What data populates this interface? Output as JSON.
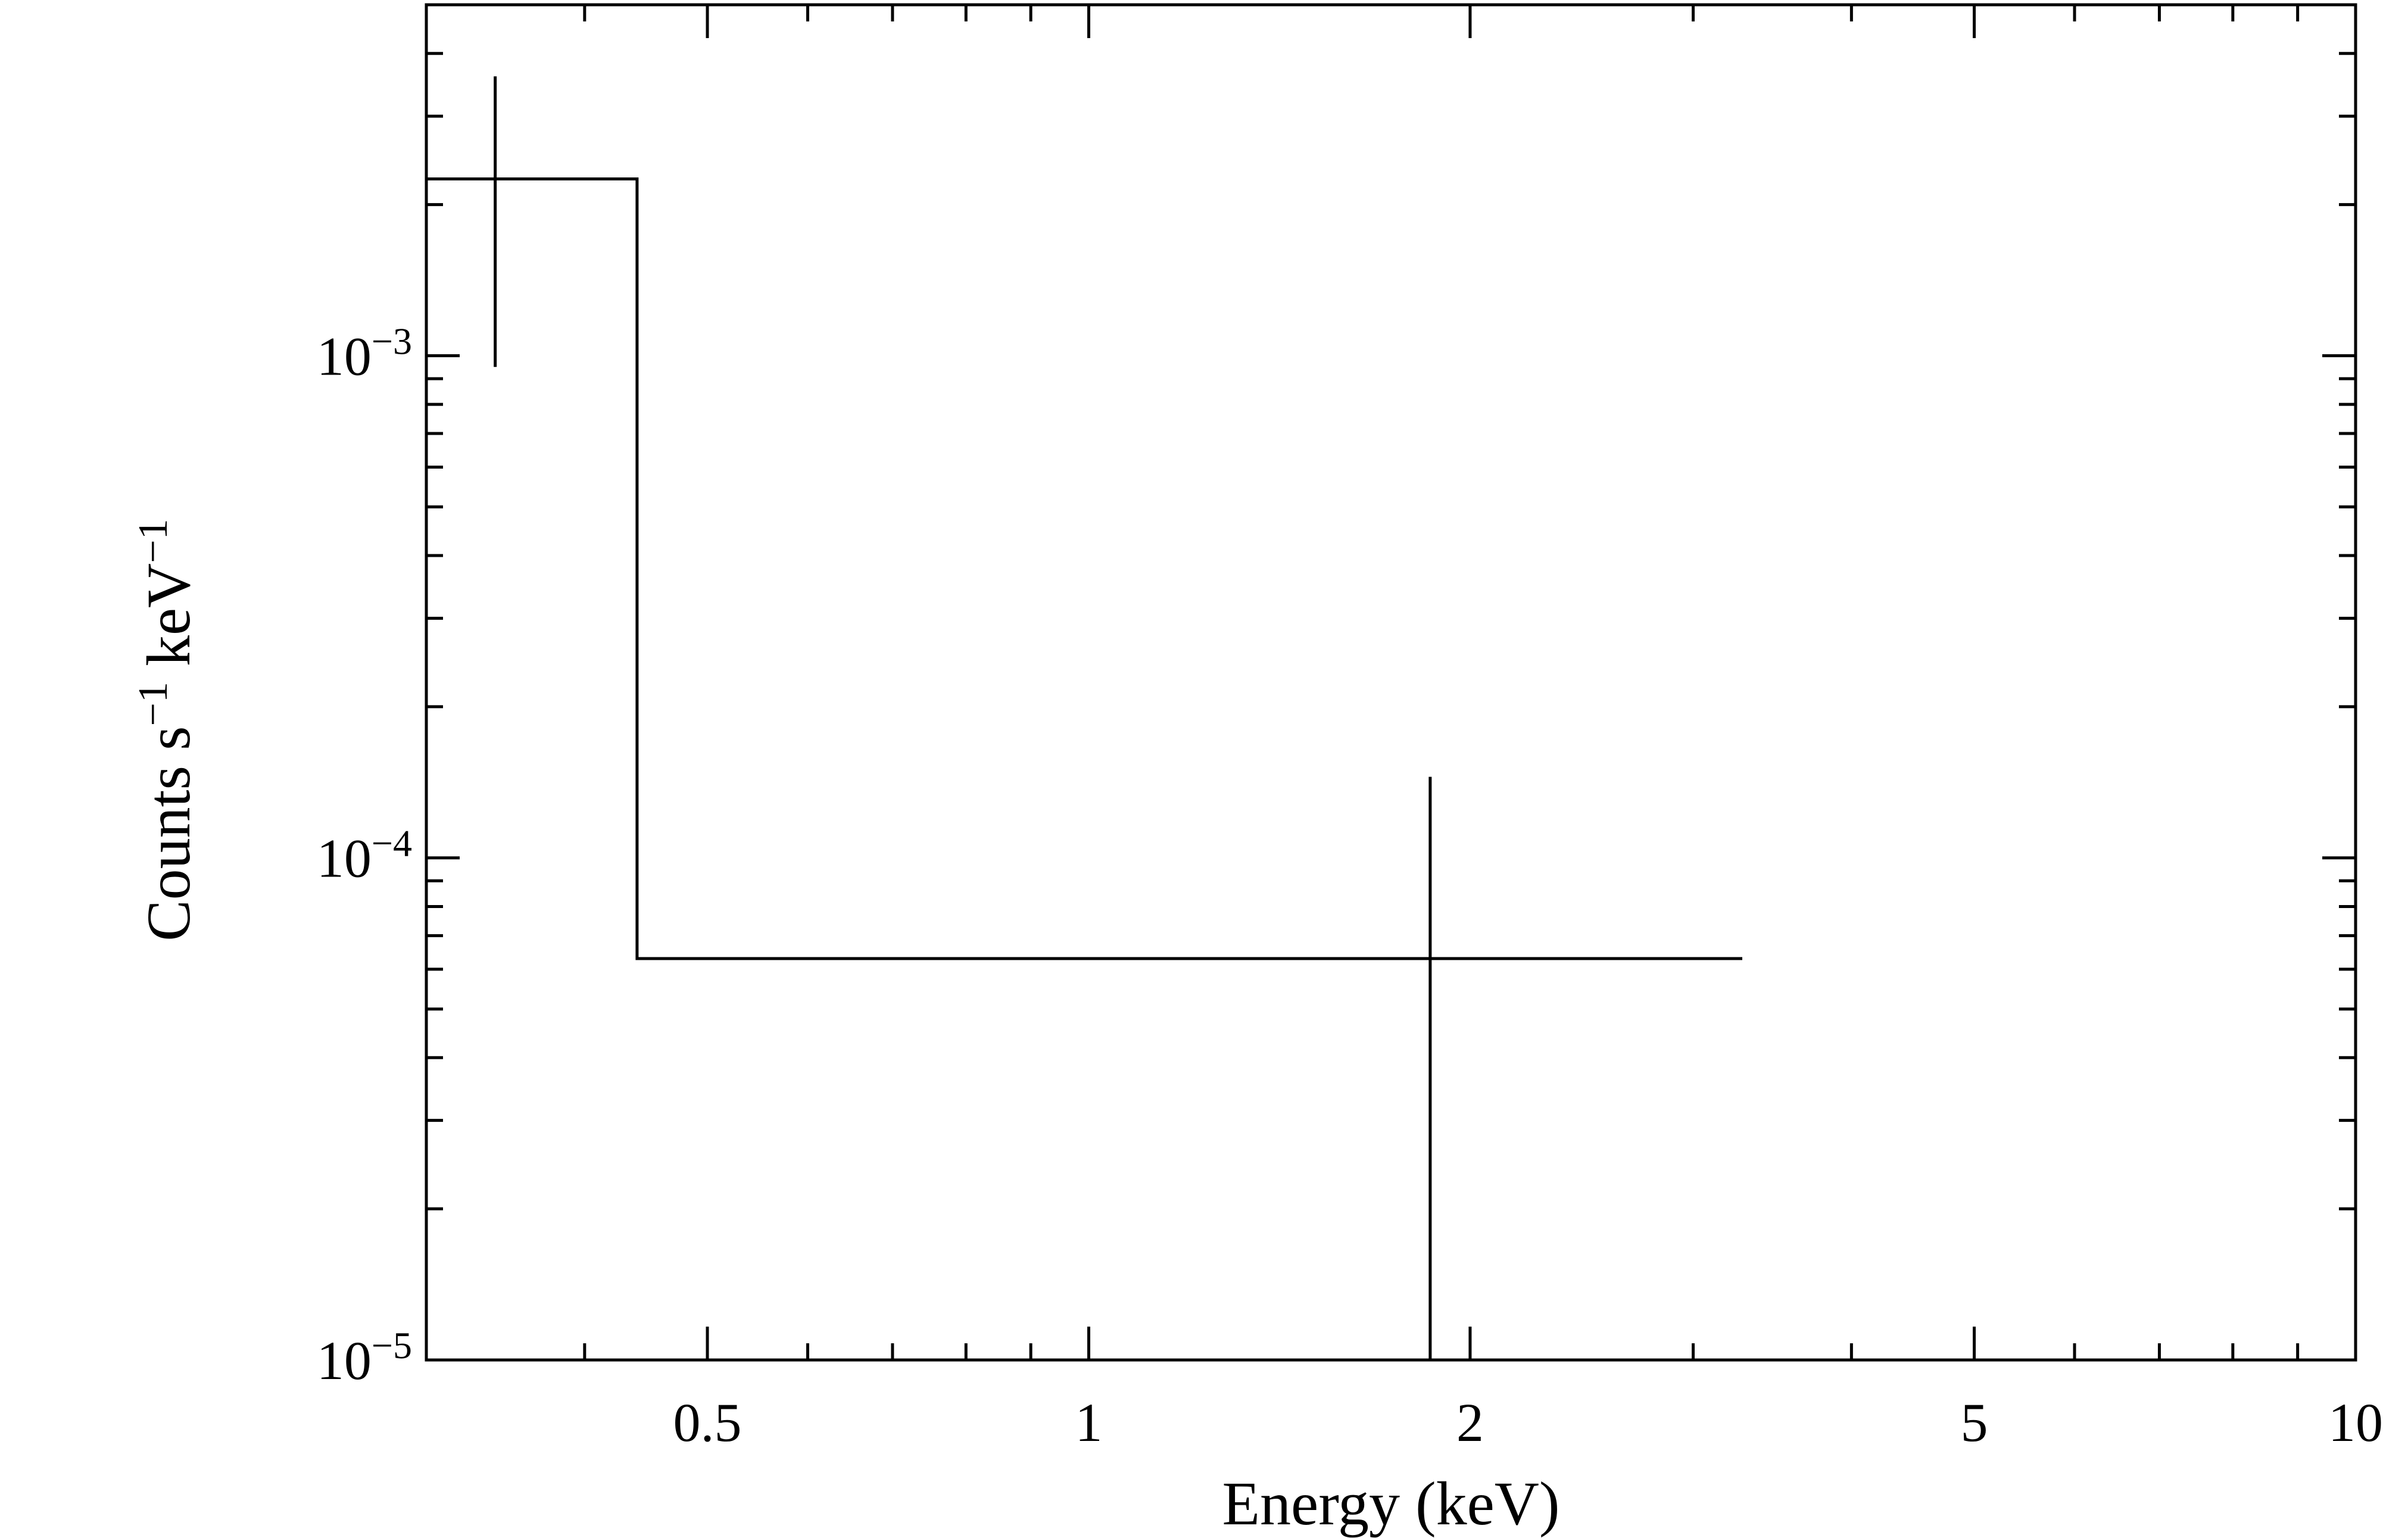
{
  "chart_data": {
    "type": "line",
    "xlabel": "Energy (keV)",
    "ylabel": {
      "base": "Counts s",
      "sup1": "−1",
      "mid": " keV",
      "sup2": "−1"
    },
    "x_scale": "log",
    "y_scale": "log",
    "xlim": [
      0.3,
      10
    ],
    "ylim": [
      1e-05,
      0.005
    ],
    "x_tick_labels": [
      {
        "value": 0.5,
        "label": "0.5"
      },
      {
        "value": 1,
        "label": "1"
      },
      {
        "value": 2,
        "label": "2"
      },
      {
        "value": 5,
        "label": "5"
      },
      {
        "value": 10,
        "label": "10"
      }
    ],
    "y_tick_labels": [
      {
        "value": 1e-05,
        "base": "10",
        "exp": "−5"
      },
      {
        "value": 0.0001,
        "base": "10",
        "exp": "−4"
      },
      {
        "value": 0.001,
        "base": "10",
        "exp": "−3"
      }
    ],
    "grid": false,
    "series": [
      {
        "style": "step",
        "bins": [
          {
            "x_low": 0.3,
            "x_high": 0.44,
            "x_center": 0.34,
            "y": 0.00225,
            "y_err_low": 0.00095,
            "y_err_high": 0.0036
          },
          {
            "x_low": 0.44,
            "x_high": 3.28,
            "x_center": 1.86,
            "y": 6.3e-05,
            "y_err_low": 1e-05,
            "y_err_high": 0.000145
          }
        ]
      }
    ]
  }
}
